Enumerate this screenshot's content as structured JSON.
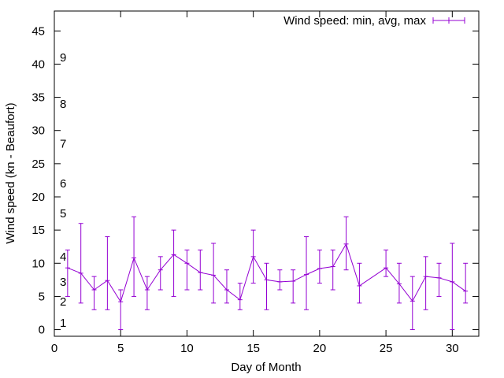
{
  "chart_data": {
    "type": "line",
    "title": "",
    "xlabel": "Day of Month",
    "ylabel": "Wind speed (kn - Beaufort)",
    "xlim": [
      0,
      32
    ],
    "ylim": [
      -1,
      48
    ],
    "xticks": [
      0,
      5,
      10,
      15,
      20,
      25,
      30
    ],
    "yticks": [
      0,
      5,
      10,
      15,
      20,
      25,
      30,
      35,
      40,
      45
    ],
    "grid": false,
    "legend_position": "top-right",
    "series": [
      {
        "name": "Wind speed: min, avg, max",
        "color": "#9400d3",
        "points": [
          {
            "x": 1,
            "min": 5,
            "avg": 9.3,
            "max": 12
          },
          {
            "x": 2,
            "min": 4,
            "avg": 8.5,
            "max": 16
          },
          {
            "x": 3,
            "min": 3,
            "avg": 6.0,
            "max": 8
          },
          {
            "x": 4,
            "min": 3,
            "avg": 7.4,
            "max": 14
          },
          {
            "x": 5,
            "min": 0,
            "avg": 4.2,
            "max": 6
          },
          {
            "x": 6,
            "min": 5,
            "avg": 10.8,
            "max": 17
          },
          {
            "x": 7,
            "min": 3,
            "avg": 6.0,
            "max": 8
          },
          {
            "x": 8,
            "min": 6,
            "avg": 9.0,
            "max": 11
          },
          {
            "x": 9,
            "min": 5,
            "avg": 11.3,
            "max": 15
          },
          {
            "x": 10,
            "min": 6,
            "avg": 10.0,
            "max": 12
          },
          {
            "x": 11,
            "min": 6,
            "avg": 8.6,
            "max": 12
          },
          {
            "x": 12,
            "min": 4,
            "avg": 8.2,
            "max": 13
          },
          {
            "x": 13,
            "min": 4,
            "avg": 6.0,
            "max": 9
          },
          {
            "x": 14,
            "min": 3,
            "avg": 4.5,
            "max": 7
          },
          {
            "x": 15,
            "min": 7,
            "avg": 11.0,
            "max": 15
          },
          {
            "x": 16,
            "min": 3,
            "avg": 7.5,
            "max": 10
          },
          {
            "x": 17,
            "min": 6,
            "avg": 7.2,
            "max": 9
          },
          {
            "x": 18,
            "min": 4,
            "avg": 7.3,
            "max": 9
          },
          {
            "x": 19,
            "min": 3,
            "avg": 8.3,
            "max": 14
          },
          {
            "x": 20,
            "min": 7,
            "avg": 9.2,
            "max": 12
          },
          {
            "x": 21,
            "min": 6,
            "avg": 9.5,
            "max": 12
          },
          {
            "x": 22,
            "min": 9,
            "avg": 12.9,
            "max": 17
          },
          {
            "x": 23,
            "min": 4,
            "avg": 6.6,
            "max": 10
          },
          {
            "x": 25,
            "min": 8,
            "avg": 9.3,
            "max": 12
          },
          {
            "x": 26,
            "min": 4,
            "avg": 6.9,
            "max": 10
          },
          {
            "x": 27,
            "min": 0,
            "avg": 4.3,
            "max": 8
          },
          {
            "x": 28,
            "min": 3,
            "avg": 8.0,
            "max": 11
          },
          {
            "x": 29,
            "min": 5,
            "avg": 7.8,
            "max": 10
          },
          {
            "x": 30,
            "min": 0,
            "avg": 7.2,
            "max": 13
          },
          {
            "x": 31,
            "min": 4,
            "avg": 5.8,
            "max": 10
          }
        ]
      }
    ],
    "beaufort_labels": [
      {
        "label": "1",
        "at": 1
      },
      {
        "label": "2",
        "at": 4.2
      },
      {
        "label": "3",
        "at": 7.2
      },
      {
        "label": "4",
        "at": 11
      },
      {
        "label": "5",
        "at": 17.5
      },
      {
        "label": "6",
        "at": 22
      },
      {
        "label": "7",
        "at": 28
      },
      {
        "label": "8",
        "at": 34
      },
      {
        "label": "9",
        "at": 41
      }
    ]
  }
}
